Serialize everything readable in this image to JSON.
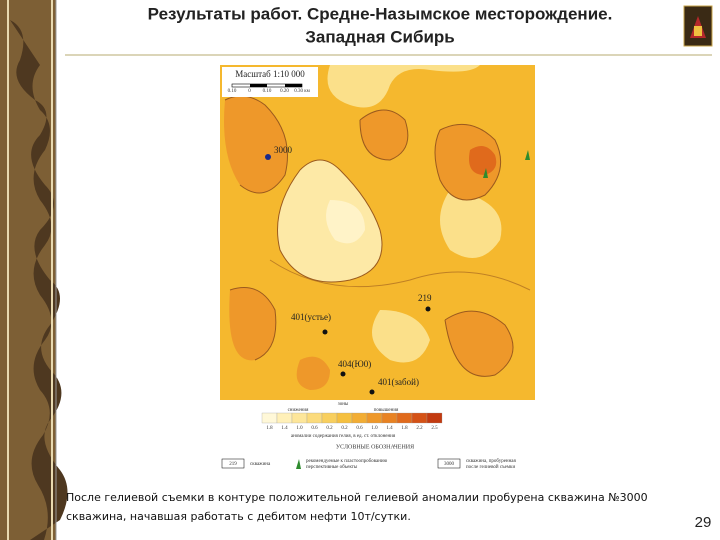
{
  "header": {
    "title": [
      "Результаты работ. Средне-Назымское месторождение.",
      "Западная Сибирь"
    ]
  },
  "map": {
    "scale_title": "Масштаб 1:10 000",
    "scale_ticks": [
      "0.10",
      "0",
      "0.10",
      "0.20",
      "0.30 км"
    ],
    "wells": [
      "3000",
      "219",
      "401(устье)",
      "404(Ю0)",
      "401(забой)"
    ]
  },
  "legend": {
    "decrease": "снижения",
    "zone": "зоны",
    "increase": "повышения",
    "values": [
      "1.8",
      "1.4",
      "1.0",
      "0.6",
      "0.2",
      "0.2",
      "0.6",
      "1.0",
      "1.4",
      "1.8",
      "2.2",
      "2.5"
    ],
    "caption": "аномалии содержания гелия, в ед. ст. отклонения",
    "title": "УСЛОВНЫЕ ОБОЗНАЧЕНИЯ",
    "items": [
      {
        "symbol": "219",
        "label": [
          "скважина"
        ]
      },
      {
        "label": [
          "рекомендуемые к пластоопробованию",
          "перспективные объекты"
        ]
      },
      {
        "symbol": "3000",
        "label": [
          "скважина, пробуренная",
          "после гелиевой съемки"
        ]
      }
    ]
  },
  "caption": [
    "После гелиевой съемки в контуре положительной гелиевой аномалии пробурена скважина №3000",
    "скважина, начавшая работать с дебитом нефти 10т/сутки."
  ],
  "page_number": 29
}
